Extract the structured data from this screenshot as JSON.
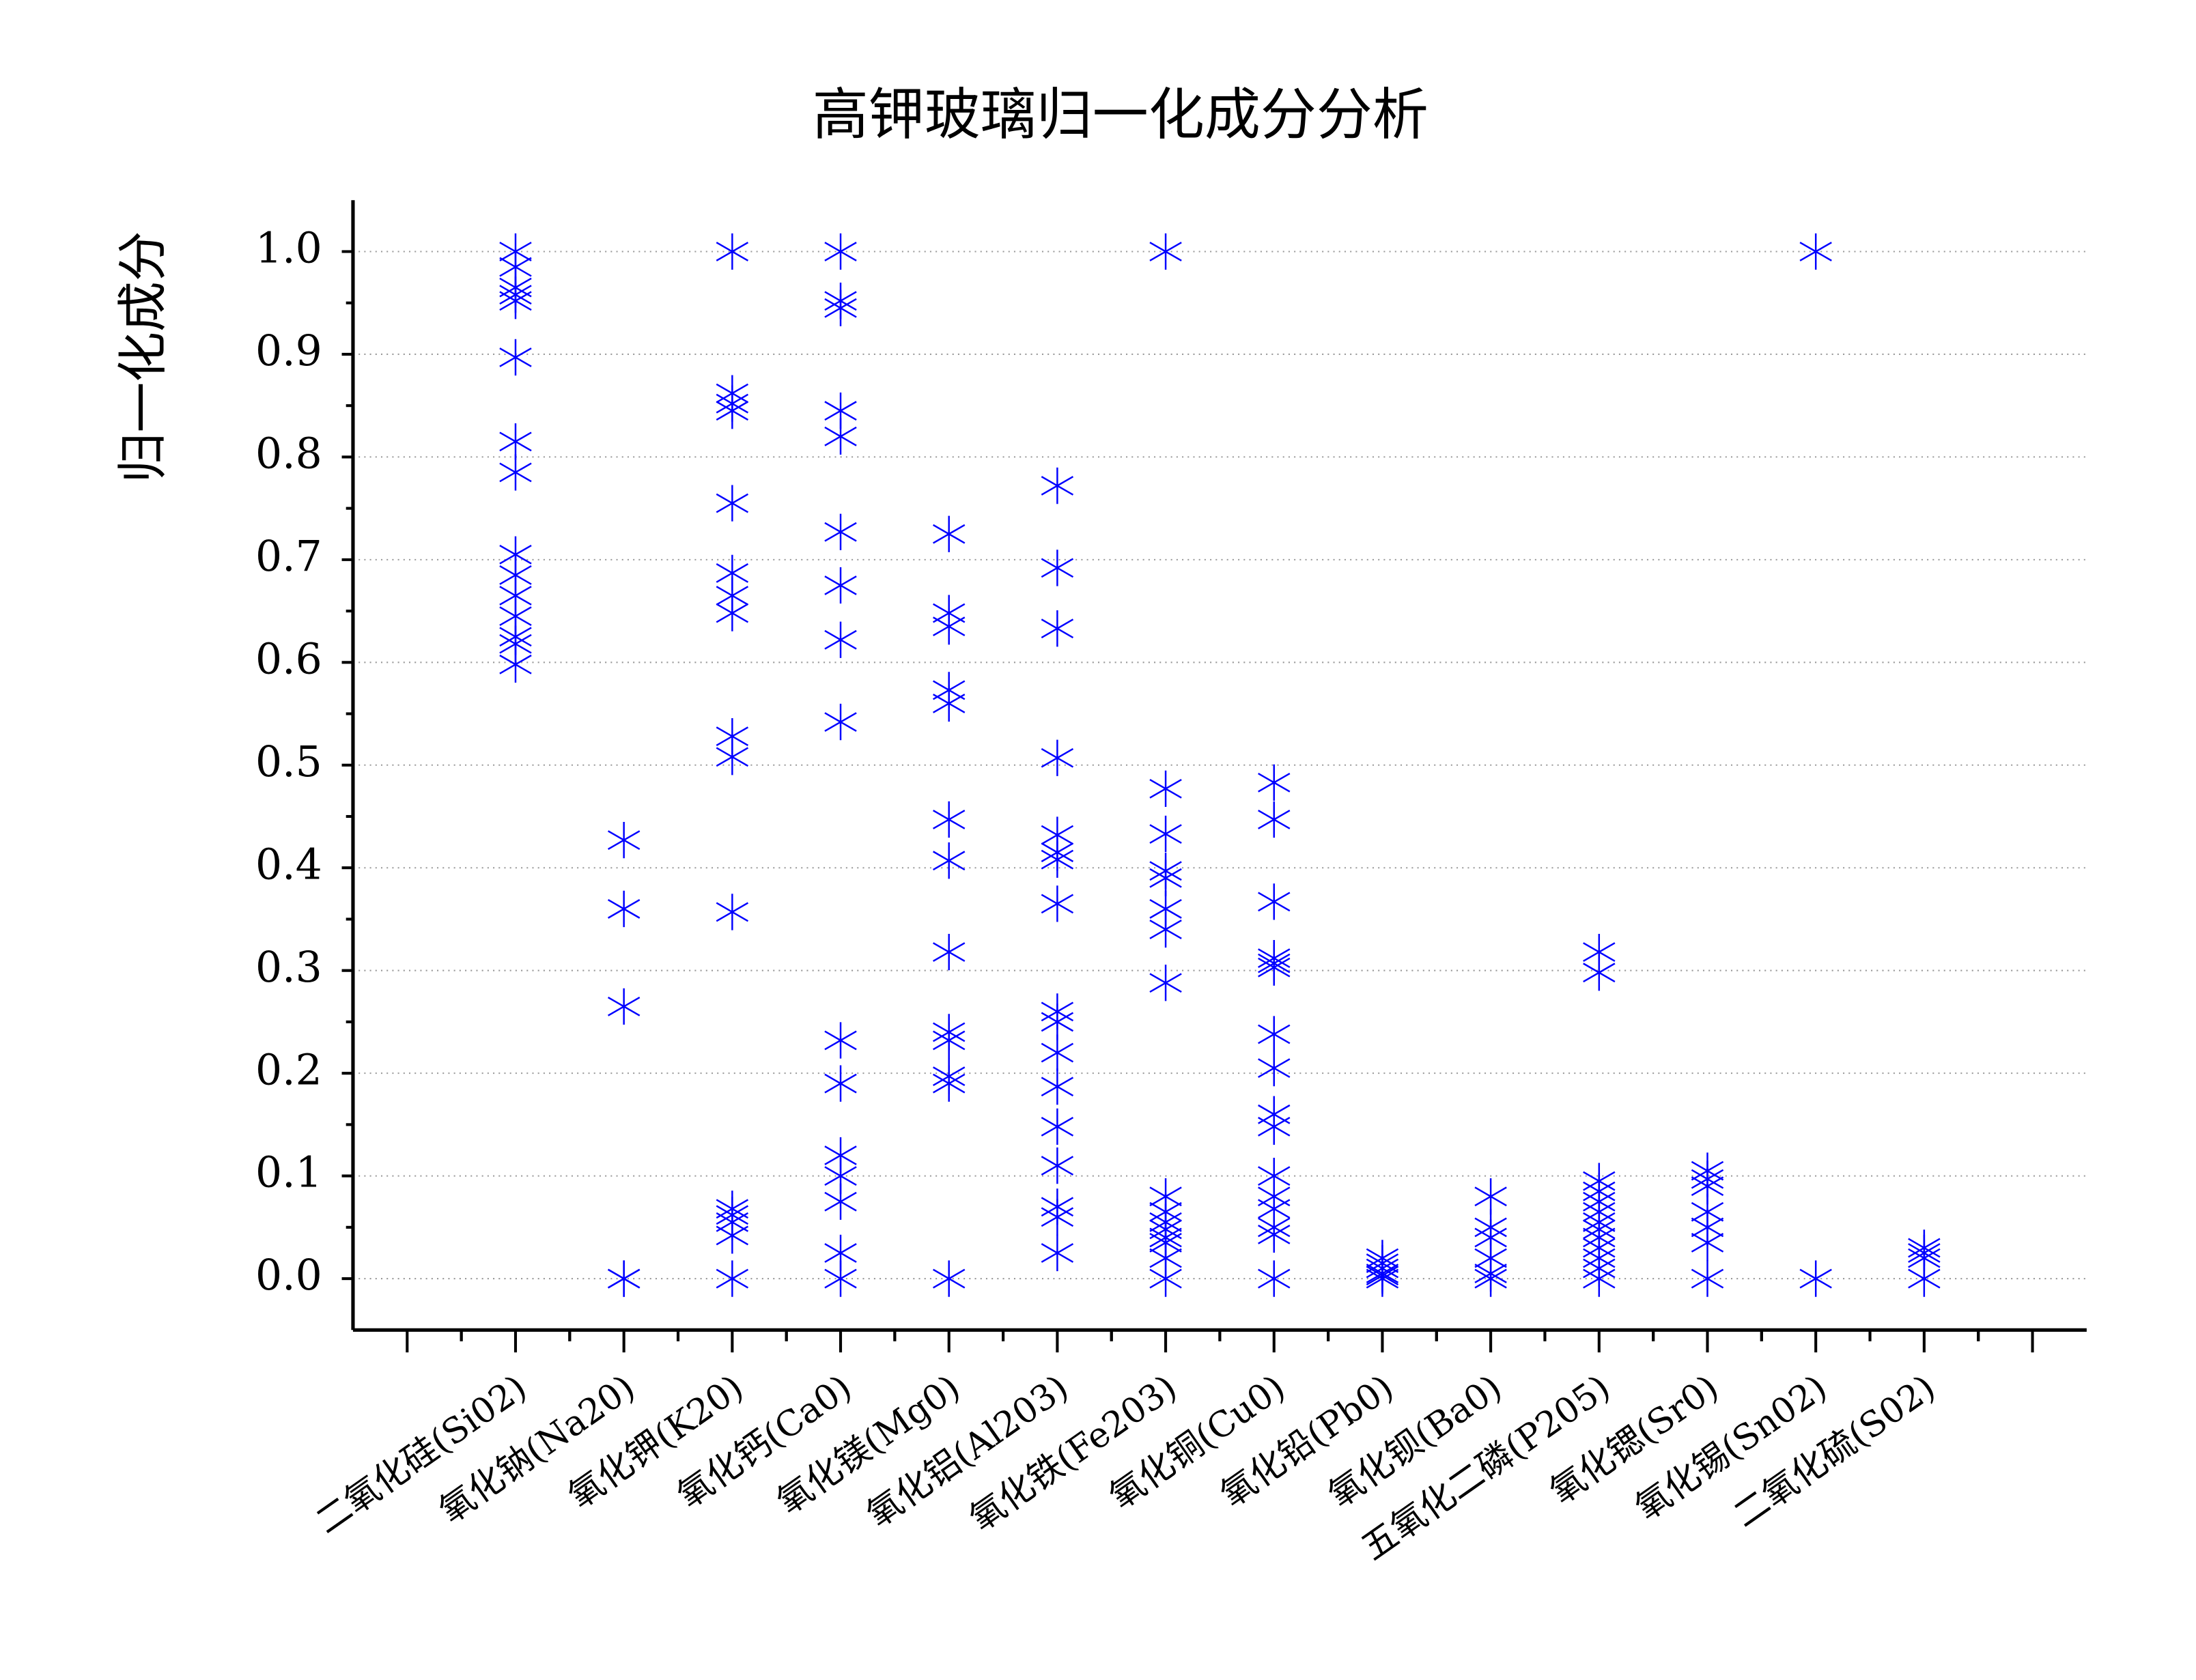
{
  "chart_data": {
    "type": "strip",
    "title": "高钾玻璃归一化成分分析",
    "y_label": "归一化成分",
    "color": "#0000ff",
    "grid": true,
    "categories": [
      "二氧化硅(Si02)",
      "氧化钠(Na20)",
      "氧化钾(K20)",
      "氧化钙(Ca0)",
      "氧化镁(Mg0)",
      "氧化铝(Al203)",
      "氧化铁(Fe203)",
      "氧化铜(Cu0)",
      "氧化铅(Pb0)",
      "氧化钡(Ba0)",
      "五氧化二磷(P205)",
      "氧化锶(Sr0)",
      "氧化锡(Sn02)",
      "二氧化硫(S02)"
    ],
    "values": [
      [
        1.0,
        0.985,
        0.965,
        0.958,
        0.952,
        0.897,
        0.815,
        0.785,
        0.705,
        0.685,
        0.665,
        0.645,
        0.625,
        0.618,
        0.598
      ],
      [
        0,
        0,
        0.265,
        0.36,
        0.427
      ],
      [
        1.0,
        0.862,
        0.852,
        0.845,
        0.755,
        0.687,
        0.665,
        0.648,
        0.528,
        0.508,
        0.357,
        0.068,
        0.062,
        0.055,
        0.042,
        0
      ],
      [
        1.0,
        0.952,
        0.945,
        0.845,
        0.82,
        0.727,
        0.675,
        0.622,
        0.542,
        0.232,
        0.19,
        0.12,
        0.1,
        0.075,
        0.025,
        0
      ],
      [
        0.725,
        0.648,
        0.635,
        0.573,
        0.56,
        0.447,
        0.407,
        0.318,
        0.24,
        0.232,
        0.197,
        0.19,
        0
      ],
      [
        0.772,
        0.692,
        0.633,
        0.507,
        0.432,
        0.415,
        0.408,
        0.365,
        0.26,
        0.25,
        0.22,
        0.187,
        0.148,
        0.11,
        0.07,
        0.06,
        0.025
      ],
      [
        1.0,
        0.477,
        0.433,
        0.397,
        0.39,
        0.36,
        0.34,
        0.288,
        0.08,
        0.065,
        0.055,
        0.048,
        0.04,
        0.035,
        0.02,
        0
      ],
      [
        0.483,
        0.447,
        0.367,
        0.312,
        0.307,
        0.303,
        0.238,
        0.205,
        0.16,
        0.148,
        0.1,
        0.08,
        0.068,
        0.05,
        0.043,
        0
      ],
      [
        0.02,
        0.015,
        0.01,
        0.005,
        0.003,
        0
      ],
      [
        0.08,
        0.05,
        0.04,
        0.02,
        0.005,
        0
      ],
      [
        0.318,
        0.298,
        0.095,
        0.085,
        0.075,
        0.065,
        0.055,
        0.048,
        0.04,
        0.03,
        0.02,
        0.01,
        0
      ],
      [
        0.105,
        0.097,
        0.09,
        0.065,
        0.05,
        0.035,
        0
      ],
      [
        1.0,
        0
      ],
      [
        0.03,
        0.025,
        0.02,
        0
      ]
    ],
    "ylim": [
      -0.05,
      1.05
    ],
    "yticks": [
      {
        "value": 0,
        "label": "0.0"
      },
      {
        "value": 0.1,
        "label": "0.1"
      },
      {
        "value": 0.2,
        "label": "0.2"
      },
      {
        "value": 0.3,
        "label": "0.3"
      },
      {
        "value": 0.4,
        "label": "0.4"
      },
      {
        "value": 0.5,
        "label": "0.5"
      },
      {
        "value": 0.6,
        "label": "0.6"
      },
      {
        "value": 0.7,
        "label": "0.7"
      },
      {
        "value": 0.8,
        "label": "0.8"
      },
      {
        "value": 0.9,
        "label": "0.9"
      },
      {
        "value": 1,
        "label": "1.0"
      }
    ]
  }
}
